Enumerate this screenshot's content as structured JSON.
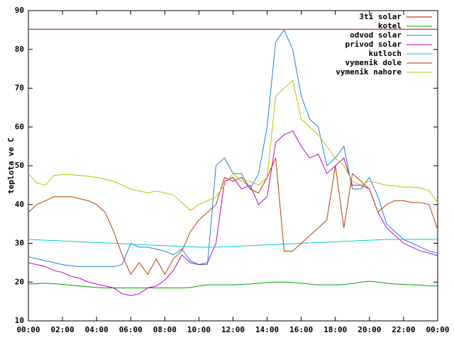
{
  "chart_data": {
    "type": "line",
    "ylabel": "teplota ve C",
    "x": [
      0,
      0.5,
      1,
      1.5,
      2,
      2.5,
      3,
      3.5,
      4,
      4.5,
      5,
      5.5,
      6,
      6.5,
      7,
      7.5,
      8,
      8.5,
      9,
      9.5,
      10,
      10.5,
      11,
      11.5,
      12,
      12.5,
      13,
      13.5,
      14,
      14.5,
      15,
      15.5,
      16,
      16.5,
      17,
      17.5,
      18,
      18.5,
      19,
      19.5,
      20,
      20.5,
      21,
      21.5,
      22,
      22.5,
      23,
      23.5,
      24
    ],
    "xlim": [
      0,
      24
    ],
    "xticks": [
      {
        "value": 0,
        "label": "00:00"
      },
      {
        "value": 2,
        "label": "02:00"
      },
      {
        "value": 4,
        "label": "04:00"
      },
      {
        "value": 6,
        "label": "06:00"
      },
      {
        "value": 8,
        "label": "08:00"
      },
      {
        "value": 10,
        "label": "10:00"
      },
      {
        "value": 12,
        "label": "12:00"
      },
      {
        "value": 14,
        "label": "14:00"
      },
      {
        "value": 16,
        "label": "16:00"
      },
      {
        "value": 18,
        "label": "18:00"
      },
      {
        "value": 20,
        "label": "20:00"
      },
      {
        "value": 22,
        "label": "22:00"
      },
      {
        "value": 24,
        "label": "00:00"
      }
    ],
    "ylim": [
      10,
      90
    ],
    "yticks": [
      10,
      20,
      30,
      40,
      50,
      60,
      70,
      80,
      90
    ],
    "legend": "top-right",
    "series": [
      {
        "name": "3ti solar",
        "color": "#c00000",
        "values": [
          85.2,
          85.2,
          85.2,
          85.2,
          85.2,
          85.2,
          85.2,
          85.2,
          85.2,
          85.2,
          85.2,
          85.2,
          85.2,
          85.2,
          85.2,
          85.2,
          85.2,
          85.2,
          85.2,
          85.2,
          85.2,
          85.2,
          85.2,
          85.2,
          85.2,
          85.2,
          85.2,
          85.2,
          85.2,
          85.2,
          85.2,
          85.2,
          85.2,
          85.2,
          85.2,
          85.2,
          85.2,
          85.2,
          85.2,
          85.2,
          85.2,
          85.2,
          85.2,
          85.2,
          85.2,
          85.2,
          85.2,
          85.2,
          85.2
        ]
      },
      {
        "name": "kotel",
        "color": "#00a000",
        "values": [
          19.5,
          19.6,
          19.7,
          19.6,
          19.4,
          19.2,
          19,
          18.8,
          18.6,
          18.5,
          18.5,
          18.5,
          18.5,
          18.5,
          18.5,
          18.5,
          18.5,
          18.5,
          18.5,
          18.6,
          19,
          19.3,
          19.3,
          19.3,
          19.3,
          19.4,
          19.5,
          19.7,
          19.9,
          20,
          20,
          19.9,
          19.7,
          19.5,
          19.3,
          19.3,
          19.3,
          19.4,
          19.6,
          20,
          20.2,
          20,
          19.7,
          19.5,
          19.4,
          19.3,
          19.2,
          19,
          19
        ]
      },
      {
        "name": "odvod solar",
        "color": "#1e80e0",
        "values": [
          26.5,
          26,
          25.5,
          25,
          24.5,
          24.2,
          24,
          24,
          24,
          24,
          24,
          24.5,
          30,
          29,
          29,
          28.5,
          28,
          27,
          28.5,
          25.5,
          24.5,
          24.5,
          50,
          52,
          48,
          48,
          44,
          48,
          60,
          82,
          85,
          80,
          68,
          62,
          60,
          50,
          52,
          55,
          44,
          44,
          47,
          42,
          35,
          33,
          31,
          30,
          29,
          28,
          27.5
        ]
      },
      {
        "name": "privod solar",
        "color": "#c000c0",
        "values": [
          25,
          24.5,
          24,
          23,
          22.5,
          21.5,
          21,
          20,
          19.5,
          19,
          18.5,
          17,
          16.5,
          17,
          18.5,
          19,
          20.5,
          23,
          27,
          25,
          24.5,
          25,
          30,
          46,
          47,
          44,
          45,
          40,
          42,
          56,
          58,
          59,
          55,
          52,
          53,
          48,
          50,
          52,
          45,
          45,
          44,
          38,
          34,
          32,
          30,
          29,
          28,
          27.5,
          26.8
        ]
      },
      {
        "name": "kutloch",
        "color": "#00d0d0",
        "values": [
          31,
          30.9,
          30.8,
          30.7,
          30.6,
          30.5,
          30.4,
          30.3,
          30.2,
          30.1,
          30,
          29.9,
          29.8,
          29.7,
          29.6,
          29.5,
          29.4,
          29.3,
          29.2,
          29.1,
          29,
          29,
          29,
          29.1,
          29.2,
          29.3,
          29.4,
          29.5,
          29.6,
          29.7,
          29.8,
          29.9,
          30,
          30.1,
          30.2,
          30.3,
          30.4,
          30.5,
          30.6,
          30.7,
          30.8,
          30.9,
          31,
          31,
          31,
          31,
          31,
          31,
          31
        ]
      },
      {
        "name": "vymenik dole",
        "color": "#b04000",
        "values": [
          38,
          40,
          41,
          42,
          42,
          42,
          41.5,
          41,
          40,
          38,
          33,
          27,
          22,
          25,
          22,
          26,
          22,
          26,
          28,
          33,
          36,
          38,
          40,
          47,
          46,
          47,
          44,
          43,
          47,
          52,
          28,
          28,
          30,
          32,
          34,
          36,
          50,
          34,
          48,
          46,
          44,
          38,
          40,
          41,
          41,
          40.5,
          40.5,
          40,
          33.5
        ]
      },
      {
        "name": "vymenik nahore",
        "color": "#c0c000",
        "values": [
          48,
          45.5,
          45,
          47.5,
          47.7,
          47.7,
          47.5,
          47.3,
          47,
          46.5,
          46,
          45,
          44,
          43.5,
          43,
          43.5,
          43,
          42.5,
          40.5,
          38.5,
          40,
          41,
          42,
          45,
          48,
          46,
          46,
          45,
          47,
          68,
          70,
          72,
          62,
          60,
          58,
          55,
          52,
          50,
          46,
          45,
          46,
          45.5,
          45,
          44.8,
          44.5,
          44.5,
          44.3,
          43.5,
          40.5
        ]
      }
    ]
  }
}
